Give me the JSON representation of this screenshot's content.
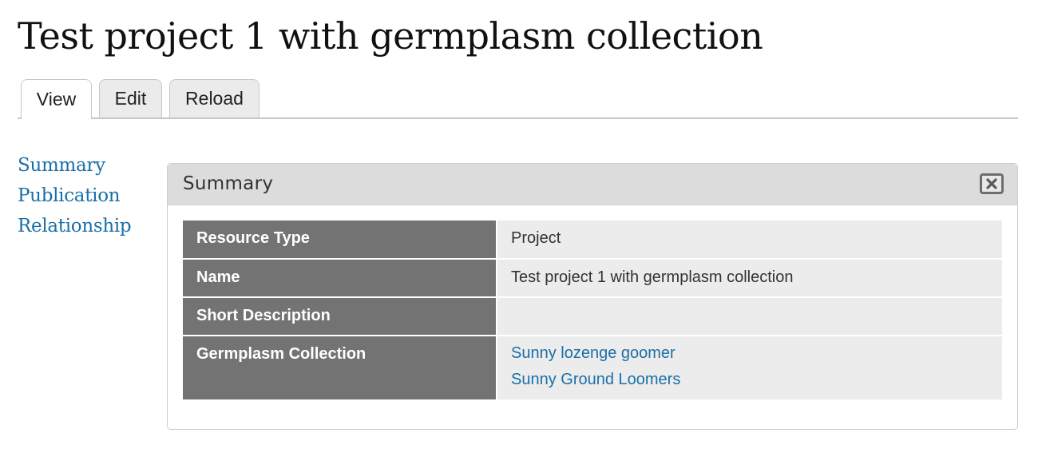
{
  "page": {
    "title": "Test project 1 with germplasm collection"
  },
  "tabs": [
    {
      "label": "View",
      "active": true
    },
    {
      "label": "Edit",
      "active": false
    },
    {
      "label": "Reload",
      "active": false
    }
  ],
  "sidebar": {
    "items": [
      {
        "label": "Summary"
      },
      {
        "label": "Publication"
      },
      {
        "label": "Relationship"
      }
    ]
  },
  "pane": {
    "title": "Summary",
    "close_icon": "close-icon"
  },
  "details": {
    "rows": [
      {
        "label": "Resource Type",
        "value": "Project"
      },
      {
        "label": "Name",
        "value": "Test project 1 with germplasm collection"
      },
      {
        "label": "Short Description",
        "value": ""
      },
      {
        "label": "Germplasm Collection",
        "links": [
          "Sunny lozenge goomer",
          "Sunny Ground Loomers"
        ]
      }
    ]
  },
  "colors": {
    "link": "#1a6fa8",
    "label_cell_bg": "#737373",
    "value_cell_bg": "#ececec",
    "pane_header_bg": "#dcdcdc"
  }
}
